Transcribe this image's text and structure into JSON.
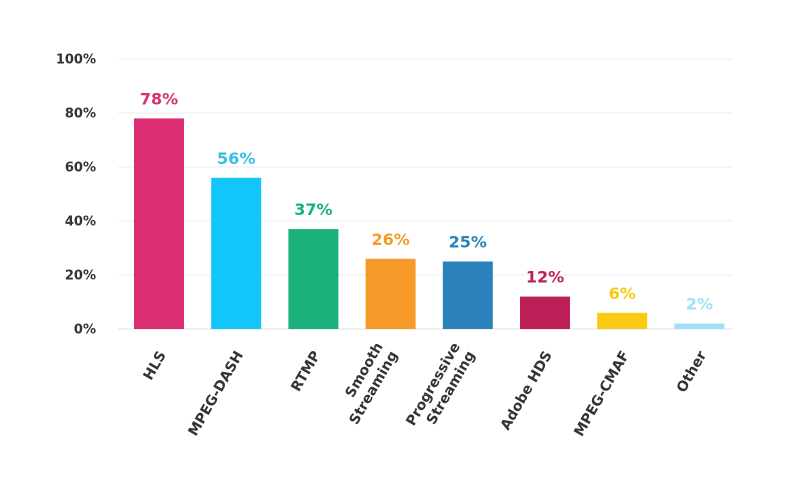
{
  "chart_data": {
    "type": "bar",
    "title": "",
    "xlabel": "",
    "ylabel": "",
    "ylim": [
      0,
      100
    ],
    "grid": true,
    "y_ticks": [
      {
        "value": 0,
        "label": "0%"
      },
      {
        "value": 20,
        "label": "20%"
      },
      {
        "value": 40,
        "label": "40%"
      },
      {
        "value": 60,
        "label": "60%"
      },
      {
        "value": 80,
        "label": "80%"
      },
      {
        "value": 100,
        "label": "100%"
      }
    ],
    "categories": [
      {
        "lines": [
          "HLS"
        ]
      },
      {
        "lines": [
          "MPEG-DASH"
        ]
      },
      {
        "lines": [
          "RTMP"
        ]
      },
      {
        "lines": [
          "Smooth",
          "Streaming"
        ]
      },
      {
        "lines": [
          "Progressive",
          "Streaming"
        ]
      },
      {
        "lines": [
          "Adobe HDS"
        ]
      },
      {
        "lines": [
          "MPEG-CMAF"
        ]
      },
      {
        "lines": [
          "Other"
        ]
      }
    ],
    "values": [
      78,
      56,
      37,
      26,
      25,
      12,
      6,
      2
    ],
    "value_labels": [
      "78%",
      "56%",
      "37%",
      "26%",
      "25%",
      "12%",
      "6%",
      "2%"
    ],
    "colors": [
      "#db2d72",
      "#12c6f9",
      "#1ab079",
      "#f59a29",
      "#2b82bb",
      "#bd2058",
      "#f9c914",
      "#a1dff5"
    ],
    "label_colors": [
      "#db2d72",
      "#36bfe2",
      "#1ab079",
      "#f59a29",
      "#2b82bb",
      "#bd2058",
      "#f9c914",
      "#a1dff5"
    ]
  }
}
